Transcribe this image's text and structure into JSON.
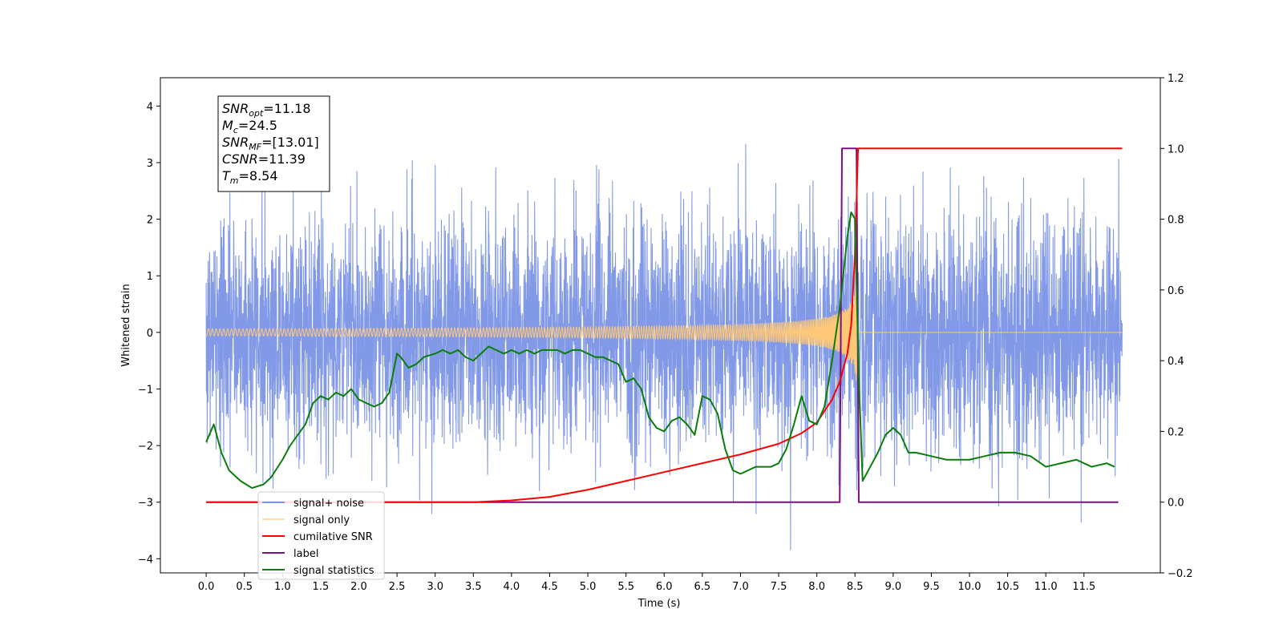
{
  "chart_data": {
    "type": "line",
    "xlabel": "Time (s)",
    "ylabel": "Whitened strain",
    "xlim": [
      -0.6,
      12.5
    ],
    "ylim": [
      -4.25,
      4.5
    ],
    "y2lim": [
      -0.2,
      1.2
    ],
    "x_ticks": [
      "0.0",
      "0.5",
      "1.0",
      "1.5",
      "2.0",
      "2.5",
      "3.0",
      "3.5",
      "4.0",
      "4.5",
      "5.0",
      "5.5",
      "6.0",
      "6.5",
      "7.0",
      "7.5",
      "8.0",
      "8.5",
      "9.0",
      "9.5",
      "10.0",
      "10.5",
      "11.0",
      "11.5"
    ],
    "y_ticks": [
      "4",
      "3",
      "2",
      "1",
      "0",
      "−1",
      "−2",
      "−3",
      "−4"
    ],
    "y2_ticks": [
      "1.2",
      "1.0",
      "0.8",
      "0.6",
      "0.4",
      "0.2",
      "0.0",
      "−0.2"
    ],
    "colors": {
      "noise": "#7b93e6",
      "signal": "#ffc878",
      "csnr": "#ff0000",
      "label": "#7d1080",
      "stats": "#0a7d0a"
    },
    "annotation": [
      {
        "sym": "SNR",
        "sub": "opt",
        "val": "=11.18"
      },
      {
        "sym": "M",
        "sub": "c",
        "val": "=24.5"
      },
      {
        "sym": "SNR",
        "sub": "MF",
        "val": "=[13.01]"
      },
      {
        "sym": "CSNR",
        "sub": "",
        "val": "=11.39"
      },
      {
        "sym": "T",
        "sub": "m",
        "val": "=8.54"
      }
    ],
    "legend": {
      "placement": "lower-left",
      "entries": [
        "signal+ noise",
        "signal only",
        "cumilative SNR",
        "label",
        "signal statistics"
      ]
    },
    "series": [
      {
        "name": "signal+ noise",
        "axis": "left",
        "kind": "noise",
        "x_range": [
          0.0,
          12.0
        ],
        "envelope_upper": 4.12,
        "envelope_lower": -3.85
      },
      {
        "name": "signal only",
        "axis": "left",
        "kind": "chirp",
        "x_range": [
          0.0,
          12.0
        ],
        "merger_time": 8.54,
        "peak_amplitude": 1.3
      },
      {
        "name": "cumilative SNR",
        "axis": "right",
        "x": [
          0.0,
          3.0,
          3.5,
          4.0,
          4.5,
          5.0,
          5.5,
          6.0,
          6.5,
          7.0,
          7.5,
          7.8,
          8.0,
          8.2,
          8.3,
          8.4,
          8.45,
          8.5,
          8.54,
          12.0
        ],
        "y": [
          0.0,
          0.0,
          0.0,
          0.005,
          0.015,
          0.035,
          0.06,
          0.085,
          0.11,
          0.135,
          0.165,
          0.195,
          0.225,
          0.29,
          0.34,
          0.42,
          0.5,
          0.7,
          1.0,
          1.0
        ]
      },
      {
        "name": "label",
        "axis": "right",
        "x": [
          0.0,
          8.3,
          8.33,
          8.52,
          8.55,
          11.95
        ],
        "y": [
          0.0,
          0.0,
          1.0,
          1.0,
          0.0,
          0.0
        ]
      },
      {
        "name": "signal statistics",
        "axis": "right",
        "x": [
          0.0,
          0.1,
          0.2,
          0.3,
          0.45,
          0.6,
          0.75,
          0.85,
          1.0,
          1.1,
          1.2,
          1.3,
          1.4,
          1.5,
          1.6,
          1.7,
          1.8,
          1.9,
          2.0,
          2.1,
          2.2,
          2.3,
          2.4,
          2.5,
          2.55,
          2.65,
          2.75,
          2.85,
          3.0,
          3.1,
          3.2,
          3.3,
          3.4,
          3.5,
          3.6,
          3.7,
          3.8,
          3.9,
          4.0,
          4.1,
          4.2,
          4.3,
          4.4,
          4.5,
          4.6,
          4.7,
          4.8,
          4.9,
          5.0,
          5.1,
          5.2,
          5.3,
          5.4,
          5.5,
          5.6,
          5.7,
          5.8,
          5.9,
          6.0,
          6.1,
          6.2,
          6.3,
          6.4,
          6.5,
          6.6,
          6.7,
          6.8,
          6.9,
          7.0,
          7.1,
          7.2,
          7.3,
          7.4,
          7.5,
          7.6,
          7.7,
          7.8,
          7.9,
          8.0,
          8.1,
          8.2,
          8.3,
          8.35,
          8.4,
          8.45,
          8.5,
          8.55,
          8.6,
          8.7,
          8.8,
          8.9,
          9.0,
          9.1,
          9.2,
          9.3,
          9.5,
          9.7,
          9.9,
          10.0,
          10.2,
          10.4,
          10.6,
          10.8,
          11.0,
          11.2,
          11.4,
          11.6,
          11.8,
          11.9
        ],
        "y": [
          0.17,
          0.22,
          0.14,
          0.09,
          0.06,
          0.04,
          0.05,
          0.07,
          0.12,
          0.16,
          0.19,
          0.22,
          0.28,
          0.3,
          0.29,
          0.31,
          0.3,
          0.32,
          0.29,
          0.28,
          0.27,
          0.28,
          0.31,
          0.42,
          0.41,
          0.38,
          0.39,
          0.41,
          0.42,
          0.43,
          0.42,
          0.43,
          0.41,
          0.4,
          0.42,
          0.44,
          0.43,
          0.42,
          0.43,
          0.42,
          0.43,
          0.42,
          0.43,
          0.43,
          0.43,
          0.42,
          0.43,
          0.43,
          0.42,
          0.41,
          0.41,
          0.4,
          0.39,
          0.34,
          0.35,
          0.32,
          0.24,
          0.21,
          0.2,
          0.23,
          0.24,
          0.22,
          0.19,
          0.3,
          0.29,
          0.25,
          0.15,
          0.09,
          0.08,
          0.09,
          0.1,
          0.1,
          0.1,
          0.11,
          0.15,
          0.22,
          0.3,
          0.23,
          0.22,
          0.27,
          0.4,
          0.55,
          0.65,
          0.75,
          0.82,
          0.8,
          0.35,
          0.06,
          0.1,
          0.14,
          0.19,
          0.21,
          0.19,
          0.14,
          0.14,
          0.13,
          0.12,
          0.12,
          0.12,
          0.13,
          0.14,
          0.14,
          0.13,
          0.1,
          0.11,
          0.12,
          0.1,
          0.11,
          0.1
        ]
      }
    ]
  }
}
